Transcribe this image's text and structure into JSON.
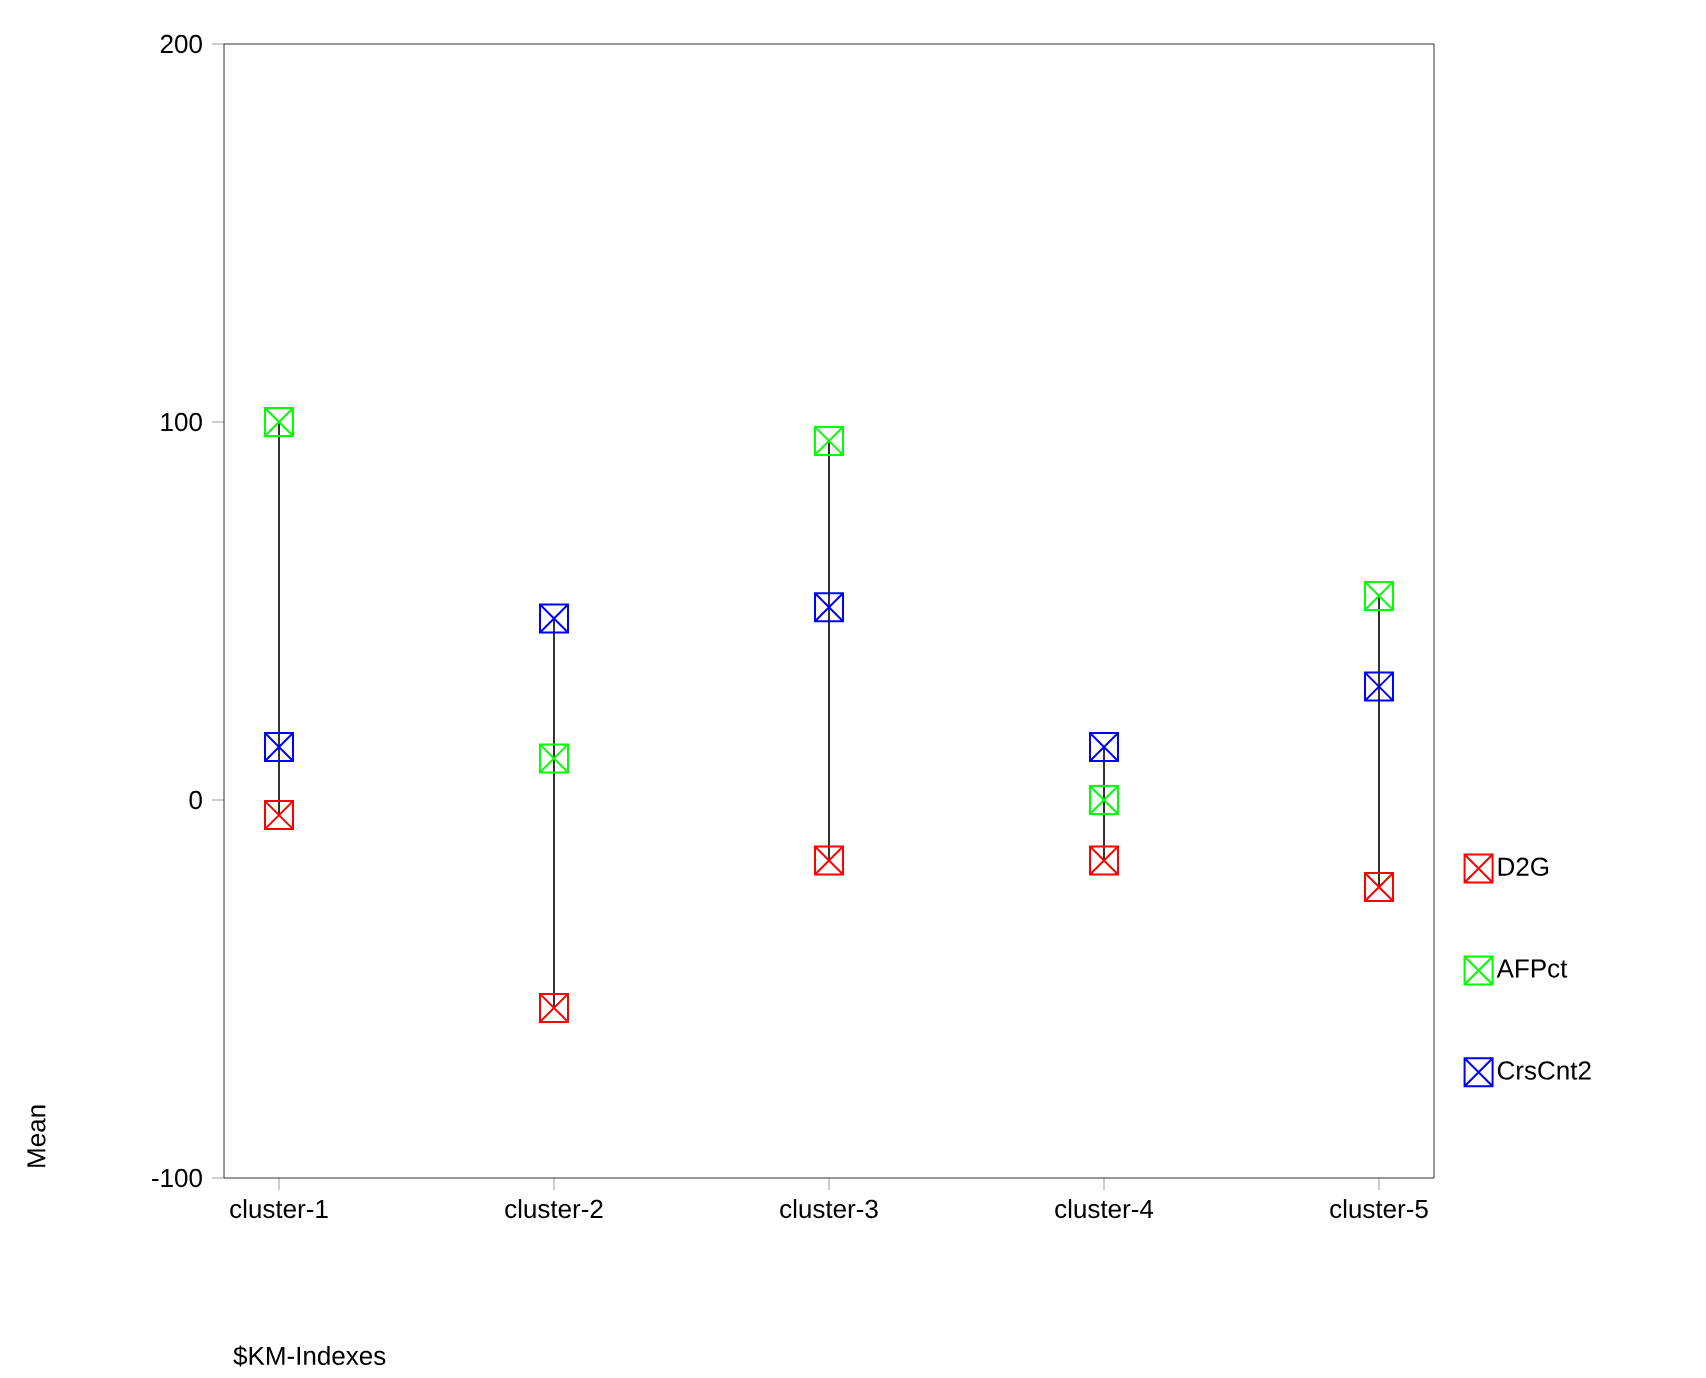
{
  "chart_data": {
    "type": "scatter",
    "xlabel": "$KM-Indexes",
    "ylabel": "Mean",
    "categories": [
      "cluster-1",
      "cluster-2",
      "cluster-3",
      "cluster-4",
      "cluster-5"
    ],
    "series": [
      {
        "name": "D2G",
        "color": "#ff0000",
        "values": [
          -4,
          -55,
          -16,
          -16,
          -23
        ]
      },
      {
        "name": "AFPct",
        "color": "#00ff00",
        "values": [
          100,
          11,
          95,
          0,
          54
        ]
      },
      {
        "name": "CrsCnt2",
        "color": "#0000ff",
        "values": [
          14,
          48,
          51,
          14,
          30
        ]
      }
    ],
    "ylim": [
      -100,
      200
    ],
    "yticks": [
      -100,
      0,
      100,
      200
    ],
    "marker": "cross",
    "legend": "right",
    "grid": false
  }
}
